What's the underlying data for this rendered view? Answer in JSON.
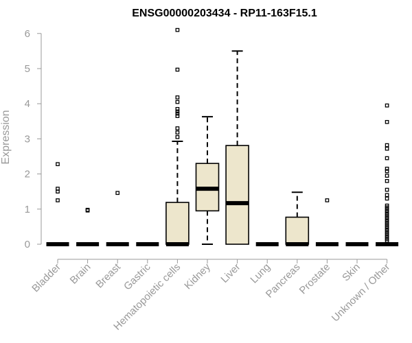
{
  "chart_data": {
    "type": "box",
    "title": "ENSG00000203434 - RP11-163F15.1",
    "xlabel": "",
    "ylabel": "Expression",
    "ylim": [
      0,
      6
    ],
    "yticks": [
      0,
      1,
      2,
      3,
      4,
      5,
      6
    ],
    "box_fill": "#ede6cc",
    "box_stroke": "#000000",
    "axis_color": "#999999",
    "grid": false,
    "categories": [
      "Bladder",
      "Brain",
      "Breast",
      "Gastric",
      "Hematopoietic cells",
      "Kidney",
      "Liver",
      "Lung",
      "Pancreas",
      "Prostate",
      "Skin",
      "Unknown / Other"
    ],
    "boxes": [
      {
        "q1": 0,
        "median": 0,
        "q3": 0,
        "whisker_low": 0,
        "whisker_high": 0,
        "outliers": [
          1.25,
          1.5,
          1.58,
          2.28
        ]
      },
      {
        "q1": 0,
        "median": 0,
        "q3": 0,
        "whisker_low": 0,
        "whisker_high": 0,
        "outliers": [
          0.96,
          0.98
        ]
      },
      {
        "q1": 0,
        "median": 0,
        "q3": 0,
        "whisker_low": 0,
        "whisker_high": 0,
        "outliers": [
          1.46
        ]
      },
      {
        "q1": 0,
        "median": 0,
        "q3": 0,
        "whisker_low": 0,
        "whisker_high": 0,
        "outliers": []
      },
      {
        "q1": 0,
        "median": 0,
        "q3": 1.19,
        "whisker_low": 0,
        "whisker_high": 2.93,
        "outliers": [
          3.05,
          3.18,
          3.3,
          3.65,
          3.72,
          3.78,
          3.85,
          4.05,
          4.18,
          4.97,
          6.1
        ]
      },
      {
        "q1": 0.95,
        "median": 1.58,
        "q3": 2.3,
        "whisker_low": 0,
        "whisker_high": 3.63,
        "outliers": []
      },
      {
        "q1": 0,
        "median": 1.17,
        "q3": 2.81,
        "whisker_low": 0,
        "whisker_high": 5.5,
        "outliers": []
      },
      {
        "q1": 0,
        "median": 0,
        "q3": 0,
        "whisker_low": 0,
        "whisker_high": 0,
        "outliers": []
      },
      {
        "q1": 0,
        "median": 0,
        "q3": 0.77,
        "whisker_low": 0,
        "whisker_high": 1.48,
        "outliers": []
      },
      {
        "q1": 0,
        "median": 0,
        "q3": 0,
        "whisker_low": 0,
        "whisker_high": 0,
        "outliers": [
          1.25
        ]
      },
      {
        "q1": 0,
        "median": 0,
        "q3": 0,
        "whisker_low": 0,
        "whisker_high": 0,
        "outliers": []
      },
      {
        "q1": 0,
        "median": 0,
        "q3": 0,
        "whisker_low": 0,
        "whisker_high": 0,
        "outliers": [
          0.1,
          0.15,
          0.2,
          0.25,
          0.3,
          0.35,
          0.4,
          0.45,
          0.5,
          0.55,
          0.6,
          0.65,
          0.7,
          0.75,
          0.8,
          0.85,
          0.9,
          0.95,
          1.0,
          1.05,
          1.1,
          1.3,
          1.4,
          1.55,
          1.8,
          1.95,
          2.08,
          2.15,
          2.45,
          2.72,
          2.82,
          3.48,
          3.95
        ]
      }
    ]
  }
}
